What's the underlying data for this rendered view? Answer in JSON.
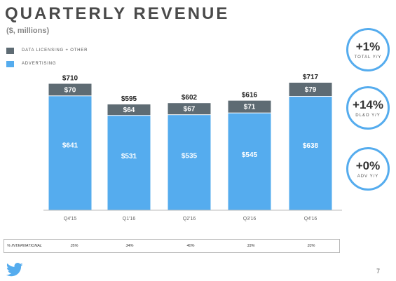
{
  "header": {
    "title": "QUARTERLY REVENUE",
    "subtitle": "($, millions)"
  },
  "legend": [
    {
      "label": "DATA LICENSING + OTHER",
      "color": "#5e6b73"
    },
    {
      "label": "ADVERTISING",
      "color": "#55acee"
    }
  ],
  "kpis": [
    {
      "value": "+1%",
      "label": "TOTAL Y/Y"
    },
    {
      "value": "+14%",
      "label": "DL&O Y/Y"
    },
    {
      "value": "+0%",
      "label": "ADV Y/Y"
    }
  ],
  "international": {
    "label": "% INTERNATIONAL",
    "values": [
      "35%",
      "34%",
      "40%",
      "33%",
      "33%"
    ]
  },
  "page_number": "7",
  "colors": {
    "accent": "#55acee",
    "secondary": "#5e6b73"
  },
  "chart_data": {
    "type": "bar",
    "stacked": true,
    "title": "QUARTERLY REVENUE",
    "subtitle": "($, millions)",
    "categories": [
      "Q4'15",
      "Q1'16",
      "Q2'16",
      "Q3'16",
      "Q4'16"
    ],
    "series": [
      {
        "name": "ADVERTISING",
        "color": "#55acee",
        "values": [
          641,
          531,
          535,
          545,
          638
        ],
        "labels": [
          "$641",
          "$531",
          "$535",
          "$545",
          "$638"
        ]
      },
      {
        "name": "DATA LICENSING + OTHER",
        "color": "#5e6b73",
        "values": [
          70,
          64,
          67,
          71,
          79
        ],
        "labels": [
          "$70",
          "$64",
          "$67",
          "$71",
          "$79"
        ]
      }
    ],
    "totals": [
      710,
      595,
      602,
      616,
      717
    ],
    "total_labels": [
      "$710",
      "$595",
      "$602",
      "$616",
      "$717"
    ],
    "ylim": [
      0,
      730
    ],
    "xlabel": "",
    "ylabel": "",
    "grid": false,
    "legend": "top-left"
  }
}
